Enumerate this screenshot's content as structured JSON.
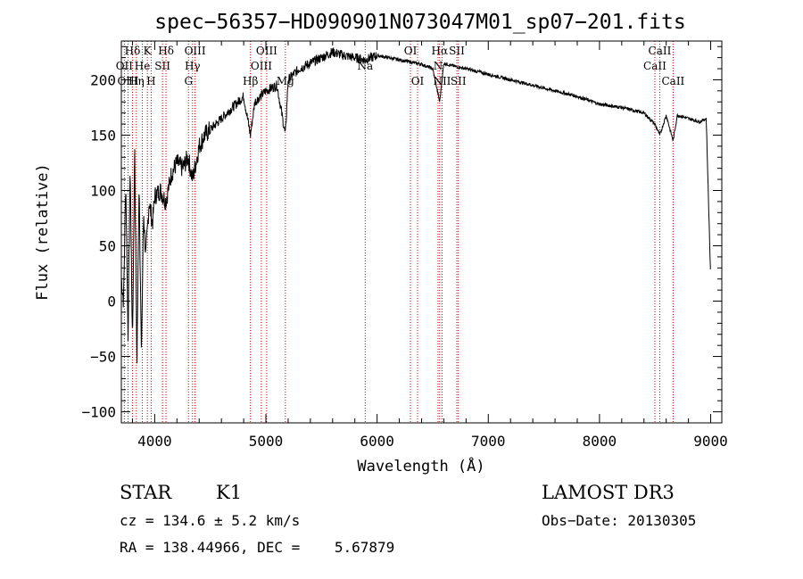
{
  "chart_data": {
    "type": "line",
    "title": "spec−56357−HD090901N073047M01_sp07−201.fits",
    "xlabel": "Wavelength (Å)",
    "ylabel": "Flux (relative)",
    "xlim": [
      3700,
      9100
    ],
    "ylim": [
      -110,
      235
    ],
    "x_ticks": [
      4000,
      5000,
      6000,
      7000,
      8000,
      9000
    ],
    "y_ticks": [
      -100,
      -50,
      0,
      50,
      100,
      150,
      200
    ],
    "y_tick_labels": [
      "−100",
      "−50",
      "0",
      "50",
      "100",
      "150",
      "200"
    ],
    "series": [
      {
        "name": "flux",
        "x": [
          3700,
          3720,
          3740,
          3760,
          3780,
          3800,
          3820,
          3840,
          3860,
          3880,
          3900,
          3920,
          3950,
          3980,
          4000,
          4050,
          4100,
          4150,
          4200,
          4250,
          4300,
          4340,
          4400,
          4450,
          4500,
          4600,
          4700,
          4800,
          4861,
          4900,
          5000,
          5100,
          5175,
          5200,
          5300,
          5400,
          5500,
          5600,
          5700,
          5800,
          5890,
          5950,
          6000,
          6100,
          6200,
          6300,
          6400,
          6500,
          6563,
          6600,
          6700,
          6800,
          7000,
          7200,
          7400,
          7600,
          7800,
          8000,
          8200,
          8400,
          8498,
          8542,
          8600,
          8662,
          8700,
          8800,
          8900,
          8960,
          9000
        ],
        "y": [
          20,
          0,
          110,
          -30,
          120,
          -40,
          140,
          -60,
          110,
          -50,
          80,
          40,
          90,
          70,
          95,
          100,
          90,
          115,
          125,
          120,
          130,
          110,
          140,
          150,
          155,
          165,
          175,
          185,
          150,
          180,
          190,
          195,
          150,
          200,
          210,
          215,
          220,
          225,
          222,
          220,
          218,
          220,
          222,
          220,
          218,
          216,
          214,
          210,
          180,
          215,
          212,
          210,
          205,
          200,
          195,
          190,
          185,
          178,
          175,
          170,
          160,
          150,
          168,
          145,
          168,
          165,
          162,
          165,
          20
        ]
      }
    ],
    "spectral_lines": [
      {
        "label": "Hδ",
        "x": 3800,
        "row": 1
      },
      {
        "label": "K",
        "x": 3934,
        "row": 1
      },
      {
        "label": "Hδ",
        "x": 4102,
        "row": 1
      },
      {
        "label": "OIII",
        "x": 4363,
        "row": 1
      },
      {
        "label": "OIII",
        "x": 5007,
        "row": 1
      },
      {
        "label": "OI",
        "x": 6300,
        "row": 1
      },
      {
        "label": "Hα",
        "x": 6563,
        "row": 1
      },
      {
        "label": "SII",
        "x": 6717,
        "row": 1
      },
      {
        "label": "CaII",
        "x": 8542,
        "row": 1
      },
      {
        "label": "OII",
        "x": 3727,
        "row": 2
      },
      {
        "label": "He",
        "x": 3889,
        "row": 2
      },
      {
        "label": "SII",
        "x": 4070,
        "row": 2
      },
      {
        "label": "Hγ",
        "x": 4340,
        "row": 2
      },
      {
        "label": "OIII",
        "x": 4959,
        "row": 2
      },
      {
        "label": "Na",
        "x": 5893,
        "row": 2
      },
      {
        "label": "N",
        "x": 6548,
        "row": 2
      },
      {
        "label": "CaII",
        "x": 8498,
        "row": 2
      },
      {
        "label": "OIII",
        "x": 3760,
        "row": 3
      },
      {
        "label": "Hη",
        "x": 3835,
        "row": 3
      },
      {
        "label": "H",
        "x": 3968,
        "row": 3
      },
      {
        "label": "G",
        "x": 4304,
        "row": 3
      },
      {
        "label": "Hβ",
        "x": 4861,
        "row": 3
      },
      {
        "label": "Mg",
        "x": 5175,
        "row": 3
      },
      {
        "label": "OI",
        "x": 6364,
        "row": 3
      },
      {
        "label": "NII",
        "x": 6584,
        "row": 3
      },
      {
        "label": "SII",
        "x": 6731,
        "row": 3
      },
      {
        "label": "CaII",
        "x": 8662,
        "row": 3
      }
    ]
  },
  "info": {
    "object_type": "STAR",
    "subclass": "K1",
    "survey": "LAMOST DR3",
    "cz": "cz = 134.6 ± 5.2 km/s",
    "obs_date": "Obs−Date: 20130305",
    "coords": "RA = 138.44966, DEC =    5.67879"
  }
}
